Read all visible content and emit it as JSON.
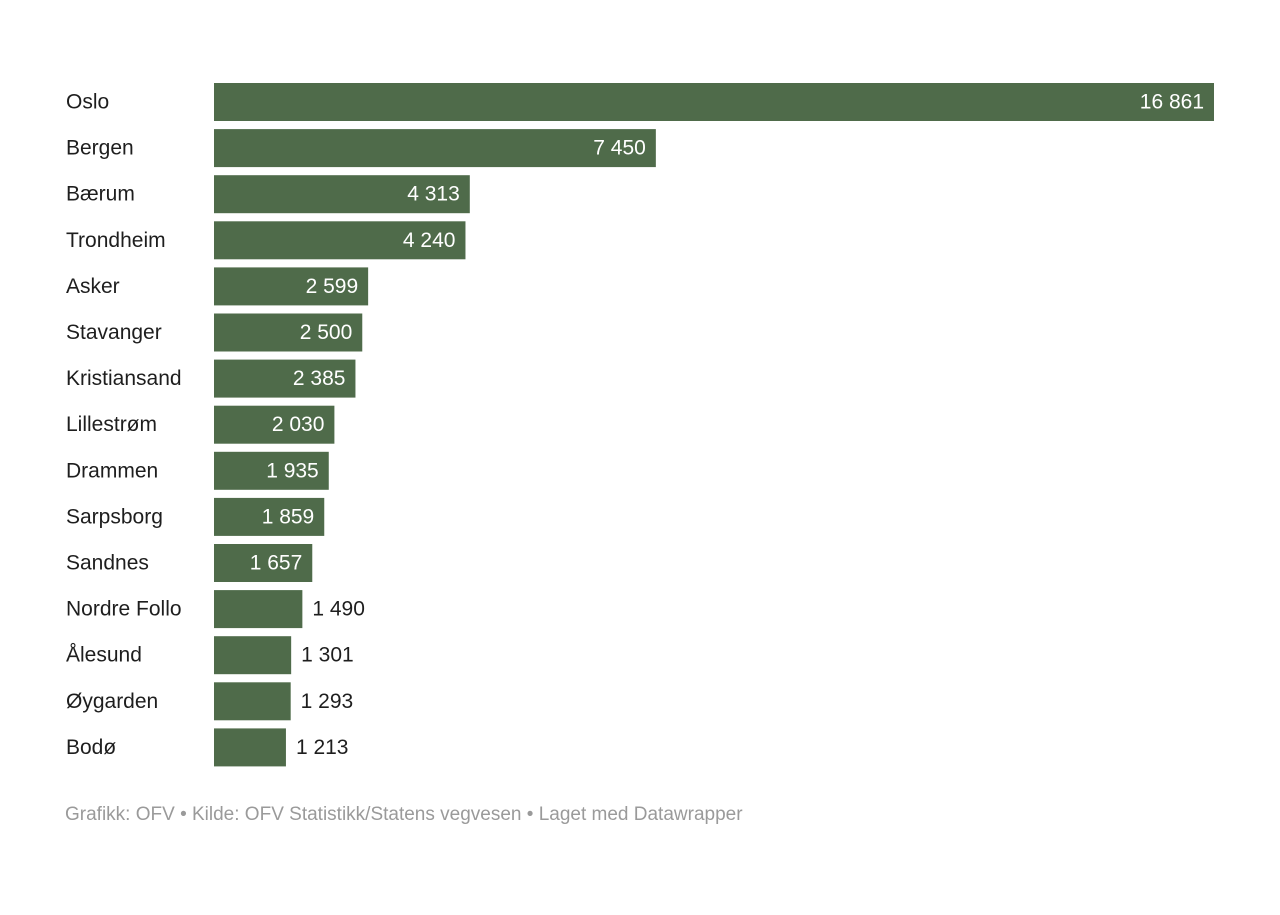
{
  "chart_data": {
    "type": "bar",
    "orientation": "horizontal",
    "categories": [
      "Oslo",
      "Bergen",
      "Bærum",
      "Trondheim",
      "Asker",
      "Stavanger",
      "Kristiansand",
      "Lillestrøm",
      "Drammen",
      "Sarpsborg",
      "Sandnes",
      "Nordre Follo",
      "Ålesund",
      "Øygarden",
      "Bodø"
    ],
    "values": [
      16861,
      7450,
      4313,
      4240,
      2599,
      2500,
      2385,
      2030,
      1935,
      1859,
      1657,
      1490,
      1301,
      1293,
      1213
    ],
    "value_labels": [
      "16 861",
      "7 450",
      "4 313",
      "4 240",
      "2 599",
      "2 500",
      "2 385",
      "2 030",
      "1 935",
      "1 859",
      "1 657",
      "1 490",
      "1 301",
      "1 293",
      "1 213"
    ],
    "xlim": [
      0,
      16861
    ],
    "bar_color": "#4f6b4a",
    "grid": false
  },
  "footer": {
    "text": "Grafikk: OFV • Kilde: OFV Statistikk/Statens vegvesen • Laget med Datawrapper"
  }
}
